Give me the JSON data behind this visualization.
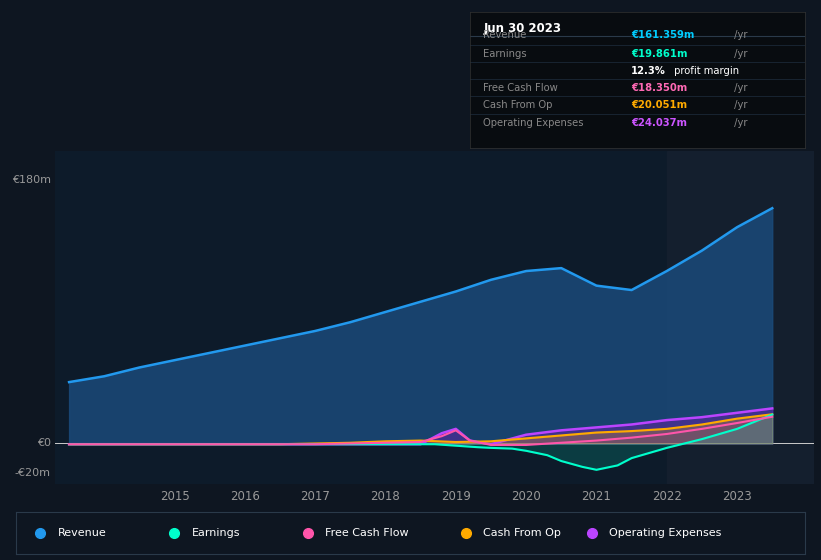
{
  "bg_color": "#0e1621",
  "plot_bg_color": "#0d1b2a",
  "title_box_bg": "#080c10",
  "title_box": {
    "date": "Jun 30 2023",
    "rows": [
      {
        "label": "Revenue",
        "value": "€161.359m",
        "suffix": " /yr",
        "value_color": "#00ccff",
        "label_color": "#888888"
      },
      {
        "label": "Earnings",
        "value": "€19.861m",
        "suffix": " /yr",
        "value_color": "#00ffcc",
        "label_color": "#888888"
      },
      {
        "label": "",
        "value": "12.3%",
        "suffix": " profit margin",
        "value_color": "#ffffff",
        "label_color": "#888888"
      },
      {
        "label": "Free Cash Flow",
        "value": "€18.350m",
        "suffix": " /yr",
        "value_color": "#ff69b4",
        "label_color": "#888888"
      },
      {
        "label": "Cash From Op",
        "value": "€20.051m",
        "suffix": " /yr",
        "value_color": "#ffaa00",
        "label_color": "#888888"
      },
      {
        "label": "Operating Expenses",
        "value": "€24.037m",
        "suffix": " /yr",
        "value_color": "#cc55ff",
        "label_color": "#888888"
      }
    ]
  },
  "ylim": [
    -28,
    200
  ],
  "xlim_start": 2013.3,
  "xlim_end": 2024.1,
  "xticks": [
    2015,
    2016,
    2017,
    2018,
    2019,
    2020,
    2021,
    2022,
    2023
  ],
  "y_label_180": "€180m",
  "y_label_0": "€0",
  "y_label_neg20": "-€20m",
  "series": {
    "revenue": {
      "color": "#2299ee",
      "fill_color": "#1a4a7a",
      "fill_alpha": 0.85,
      "lw": 1.8,
      "data_x": [
        2013.5,
        2014.0,
        2014.5,
        2015.0,
        2015.5,
        2016.0,
        2016.5,
        2017.0,
        2017.5,
        2018.0,
        2018.5,
        2019.0,
        2019.5,
        2020.0,
        2020.5,
        2021.0,
        2021.5,
        2022.0,
        2022.5,
        2023.0,
        2023.5
      ],
      "data_y": [
        42,
        46,
        52,
        57,
        62,
        67,
        72,
        77,
        83,
        90,
        97,
        104,
        112,
        118,
        120,
        108,
        105,
        118,
        132,
        148,
        161
      ]
    },
    "earnings": {
      "color": "#00ffcc",
      "fill_color": "#00ffcc",
      "fill_alpha": 0.15,
      "lw": 1.5,
      "data_x": [
        2013.5,
        2014.0,
        2014.5,
        2015.0,
        2015.5,
        2016.0,
        2016.5,
        2017.0,
        2017.5,
        2018.0,
        2018.5,
        2018.7,
        2019.0,
        2019.3,
        2019.5,
        2019.8,
        2020.0,
        2020.3,
        2020.5,
        2020.8,
        2021.0,
        2021.3,
        2021.5,
        2022.0,
        2022.5,
        2023.0,
        2023.5
      ],
      "data_y": [
        -0.5,
        -0.5,
        -0.5,
        -0.5,
        -0.5,
        -0.5,
        -0.5,
        -0.5,
        -0.5,
        -0.5,
        -0.5,
        -0.5,
        -1.5,
        -2.5,
        -3.0,
        -3.5,
        -5.0,
        -8.0,
        -12.0,
        -16.0,
        -18.0,
        -15.0,
        -10.0,
        -3.0,
        3.0,
        10.0,
        19.8
      ]
    },
    "free_cash_flow": {
      "color": "#ff55aa",
      "lw": 1.5,
      "data_x": [
        2013.5,
        2014.0,
        2014.5,
        2015.0,
        2015.5,
        2016.0,
        2016.5,
        2017.0,
        2017.5,
        2018.0,
        2018.5,
        2018.8,
        2019.0,
        2019.2,
        2019.5,
        2020.0,
        2020.5,
        2021.0,
        2021.5,
        2022.0,
        2022.5,
        2023.0,
        2023.5
      ],
      "data_y": [
        -0.5,
        -0.5,
        -0.5,
        -0.5,
        -0.5,
        -0.5,
        -0.5,
        -0.5,
        0.0,
        0.5,
        1.0,
        5.0,
        9.0,
        2.0,
        -1.0,
        -1.0,
        0.5,
        2.0,
        4.0,
        6.5,
        10.0,
        14.0,
        18.3
      ]
    },
    "cash_from_op": {
      "color": "#ffaa00",
      "fill_color": "#ffaa00",
      "fill_alpha": 0.25,
      "lw": 1.5,
      "data_x": [
        2013.5,
        2014.0,
        2014.5,
        2015.0,
        2015.5,
        2016.0,
        2016.5,
        2017.0,
        2017.5,
        2018.0,
        2018.5,
        2019.0,
        2019.5,
        2020.0,
        2020.5,
        2021.0,
        2021.5,
        2022.0,
        2022.5,
        2023.0,
        2023.5
      ],
      "data_y": [
        -0.5,
        -0.5,
        -0.5,
        -0.5,
        -0.5,
        -0.5,
        -0.5,
        0.0,
        0.5,
        1.5,
        2.0,
        1.0,
        1.5,
        3.5,
        5.5,
        7.5,
        8.5,
        10.0,
        13.0,
        17.0,
        20.0
      ]
    },
    "operating_expenses": {
      "color": "#bb44ff",
      "fill_color": "#6622aa",
      "fill_alpha": 0.5,
      "lw": 1.8,
      "data_x": [
        2013.5,
        2014.0,
        2014.5,
        2015.0,
        2015.5,
        2016.0,
        2016.5,
        2017.0,
        2017.5,
        2018.0,
        2018.5,
        2018.8,
        2019.0,
        2019.2,
        2019.5,
        2020.0,
        2020.5,
        2021.0,
        2021.5,
        2022.0,
        2022.5,
        2023.0,
        2023.5
      ],
      "data_y": [
        -0.5,
        -0.5,
        -0.5,
        -0.5,
        -0.5,
        -0.5,
        -0.5,
        -0.5,
        -0.5,
        -0.5,
        -0.5,
        7.0,
        10.0,
        2.0,
        -0.5,
        6.0,
        9.0,
        11.0,
        13.0,
        16.0,
        18.0,
        21.0,
        24.0
      ]
    }
  },
  "legend": [
    {
      "label": "Revenue",
      "color": "#2299ee"
    },
    {
      "label": "Earnings",
      "color": "#00ffcc"
    },
    {
      "label": "Free Cash Flow",
      "color": "#ff55aa"
    },
    {
      "label": "Cash From Op",
      "color": "#ffaa00"
    },
    {
      "label": "Operating Expenses",
      "color": "#bb44ff"
    }
  ],
  "grid_color": "#1a2d40",
  "text_color": "#999999",
  "highlight_x_start": 2022.0,
  "highlight_x_end": 2024.1,
  "highlight_color": "#141f2e"
}
